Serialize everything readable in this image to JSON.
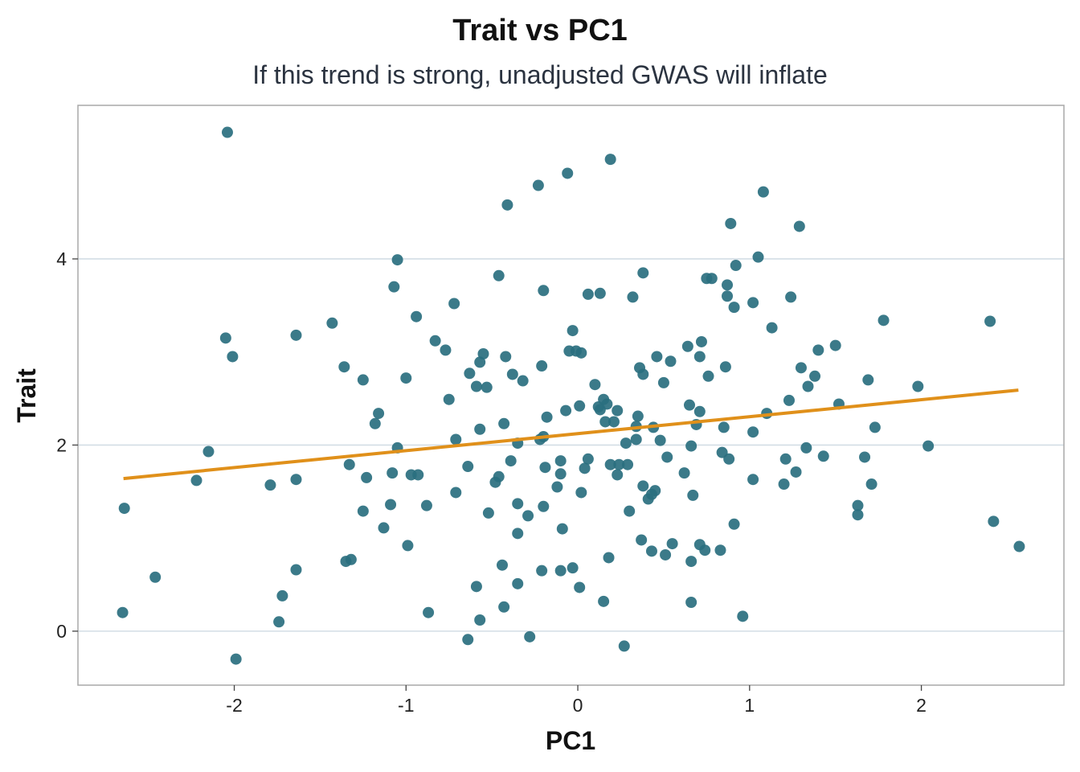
{
  "chart_data": {
    "type": "scatter",
    "title": "Trait vs PC1",
    "subtitle": "If this trend is strong, unadjusted GWAS will inflate",
    "xlabel": "PC1",
    "ylabel": "Trait",
    "xlim": [
      -2.91,
      2.83
    ],
    "ylim": [
      -0.58,
      5.65
    ],
    "xticks": [
      -2,
      -1,
      0,
      1,
      2
    ],
    "xtick_labels": [
      "-2",
      "-1",
      "0",
      "1",
      "2"
    ],
    "yticks": [
      0,
      2,
      4
    ],
    "ytick_labels": [
      "0",
      "2",
      "4"
    ],
    "grid": "horizontal",
    "point_color": "#2a6f7f",
    "line_color": "#e0901a",
    "trend_line": {
      "x": [
        -2.645,
        2.565
      ],
      "y": [
        1.64,
        2.59
      ]
    },
    "points": {
      "x": [
        -2.04,
        -0.06,
        0.19,
        -0.23,
        -0.41,
        1.08,
        0.89,
        1.29,
        -1.05,
        1.05,
        0.92,
        -1.07,
        -0.46,
        -0.2,
        0.38,
        0.06,
        0.13,
        0.32,
        0.75,
        0.78,
        0.87,
        0.87,
        0.91,
        1.02,
        1.24,
        1.13,
        -0.72,
        -0.94,
        -1.43,
        -2.05,
        -1.64,
        -0.83,
        -0.77,
        -2.01,
        1.78,
        2.4,
        -0.03,
        -0.05,
        -0.01,
        0.02,
        -0.55,
        -0.42,
        -0.57,
        -0.21,
        -1.36,
        -1.25,
        -1.0,
        -0.63,
        -0.38,
        -0.32,
        -0.59,
        -0.53,
        -0.75,
        0.1,
        0.36,
        0.38,
        0.46,
        0.54,
        0.5,
        0.64,
        0.72,
        0.71,
        0.76,
        0.86,
        1.4,
        1.5,
        1.3,
        1.38,
        1.34,
        1.69,
        1.98,
        1.23,
        1.52,
        1.1,
        1.02,
        1.73,
        2.04,
        1.33,
        -1.16,
        -1.18,
        -0.57,
        -0.43,
        -0.18,
        -0.07,
        0.01,
        0.12,
        0.15,
        0.17,
        0.23,
        0.13,
        0.35,
        0.16,
        0.21,
        0.34,
        0.44,
        0.65,
        0.71,
        0.69,
        0.85,
        0.34,
        0.48,
        0.28,
        0.66,
        0.84,
        0.88,
        0.52,
        0.62,
        1.21,
        1.27,
        1.2,
        1.02,
        1.43,
        1.67,
        1.71,
        1.63,
        1.63,
        2.42,
        2.57,
        0.91,
        -0.71,
        -1.05,
        -0.2,
        -0.35,
        -0.22,
        -2.15,
        -2.22,
        -1.79,
        -1.64,
        -1.33,
        -1.23,
        -1.08,
        -0.97,
        -0.93,
        -0.64,
        -0.71,
        -0.39,
        -0.19,
        -0.1,
        -0.1,
        -0.46,
        -0.48,
        -0.12,
        0.02,
        0.06,
        0.04,
        0.19,
        0.24,
        0.29,
        0.23,
        0.38,
        0.45,
        0.43,
        0.41,
        0.67,
        -2.64,
        -1.09,
        -1.25,
        -0.88,
        -0.52,
        -0.35,
        -0.29,
        -0.2,
        0.3,
        -1.13,
        -0.35,
        -0.09,
        -0.99,
        0.37,
        0.55,
        0.43,
        0.51,
        0.71,
        0.74,
        0.83,
        0.18,
        0.66,
        -1.35,
        -1.32,
        -1.64,
        -2.46,
        -0.44,
        -0.21,
        -0.1,
        -0.03,
        -0.35,
        -0.59,
        0.01,
        -1.72,
        -0.43,
        0.15,
        0.66,
        -2.65,
        -0.87,
        -1.74,
        -0.57,
        0.96,
        -0.64,
        -0.28,
        0.27,
        -1.99
      ],
      "y": [
        5.36,
        4.92,
        5.07,
        4.79,
        4.58,
        4.72,
        4.38,
        4.35,
        3.99,
        4.02,
        3.93,
        3.7,
        3.82,
        3.66,
        3.85,
        3.62,
        3.63,
        3.59,
        3.79,
        3.79,
        3.72,
        3.6,
        3.48,
        3.53,
        3.59,
        3.26,
        3.52,
        3.38,
        3.31,
        3.15,
        3.18,
        3.12,
        3.02,
        2.95,
        3.34,
        3.33,
        3.23,
        3.01,
        3.01,
        2.99,
        2.98,
        2.95,
        2.89,
        2.85,
        2.84,
        2.7,
        2.72,
        2.77,
        2.76,
        2.69,
        2.63,
        2.62,
        2.49,
        2.65,
        2.83,
        2.76,
        2.95,
        2.9,
        2.67,
        3.06,
        3.11,
        2.95,
        2.74,
        2.84,
        3.02,
        3.07,
        2.83,
        2.74,
        2.63,
        2.7,
        2.63,
        2.48,
        2.44,
        2.34,
        2.14,
        2.19,
        1.99,
        1.97,
        2.34,
        2.23,
        2.17,
        2.23,
        2.3,
        2.37,
        2.42,
        2.41,
        2.49,
        2.44,
        2.37,
        2.38,
        2.31,
        2.25,
        2.25,
        2.2,
        2.19,
        2.43,
        2.36,
        2.22,
        2.19,
        2.06,
        2.05,
        2.02,
        1.99,
        1.92,
        1.85,
        1.87,
        1.7,
        1.85,
        1.71,
        1.58,
        1.63,
        1.88,
        1.87,
        1.58,
        1.35,
        1.25,
        1.18,
        0.91,
        1.15,
        2.06,
        1.97,
        2.09,
        2.02,
        2.06,
        1.93,
        1.62,
        1.57,
        1.63,
        1.79,
        1.65,
        1.7,
        1.68,
        1.68,
        1.77,
        1.49,
        1.83,
        1.76,
        1.83,
        1.69,
        1.66,
        1.6,
        1.55,
        1.49,
        1.85,
        1.75,
        1.79,
        1.79,
        1.79,
        1.68,
        1.56,
        1.51,
        1.47,
        1.42,
        1.46,
        1.32,
        1.36,
        1.29,
        1.35,
        1.27,
        1.37,
        1.24,
        1.34,
        1.29,
        1.11,
        1.05,
        1.1,
        0.92,
        0.98,
        0.94,
        0.86,
        0.82,
        0.93,
        0.87,
        0.87,
        0.79,
        0.75,
        0.75,
        0.77,
        0.66,
        0.58,
        0.71,
        0.65,
        0.65,
        0.68,
        0.51,
        0.48,
        0.47,
        0.38,
        0.26,
        0.32,
        0.31,
        0.2,
        0.2,
        0.1,
        0.12,
        0.16,
        -0.09,
        -0.06,
        -0.16,
        -0.3
      ]
    }
  }
}
